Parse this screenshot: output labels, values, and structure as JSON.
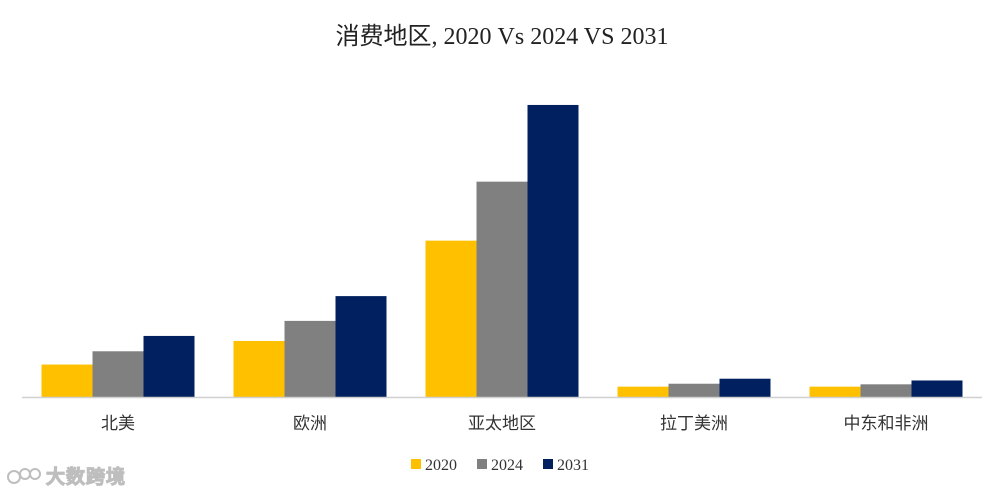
{
  "chart_data": {
    "type": "bar",
    "title": "消费地区, 2020 Vs 2024 VS 2031",
    "xlabel": "",
    "ylabel": "",
    "categories": [
      "北美",
      "欧洲",
      "亚太地区",
      "拉丁美洲",
      "中东和非洲"
    ],
    "series": [
      {
        "name": "2020",
        "color": "#FFC000",
        "values": [
          11,
          19,
          53,
          3.5,
          3.5
        ]
      },
      {
        "name": "2024",
        "color": "#808080",
        "values": [
          15.5,
          25.8,
          73,
          4.5,
          4.3
        ]
      },
      {
        "name": "2031",
        "color": "#002060",
        "values": [
          20.7,
          34.2,
          99,
          6.2,
          5.6
        ]
      }
    ],
    "ylim": [
      0,
      100
    ],
    "grid": false,
    "legend_position": "bottom"
  },
  "watermark": {
    "text": "大数跨境",
    "icon": "logo-icon"
  }
}
